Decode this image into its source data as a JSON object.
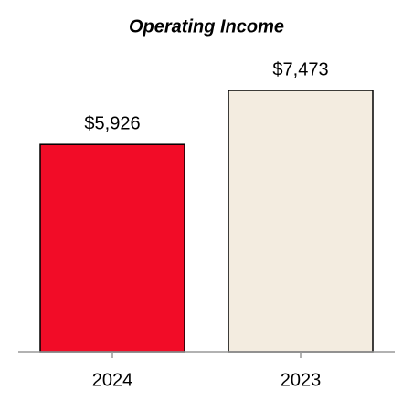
{
  "chart_data": {
    "type": "bar",
    "title": "Operating Income",
    "categories": [
      "2024",
      "2023"
    ],
    "values": [
      5926,
      7473
    ],
    "value_labels": [
      "$5,926",
      "$7,473"
    ],
    "colors": [
      "#f20c27",
      "#f3ece0"
    ]
  }
}
